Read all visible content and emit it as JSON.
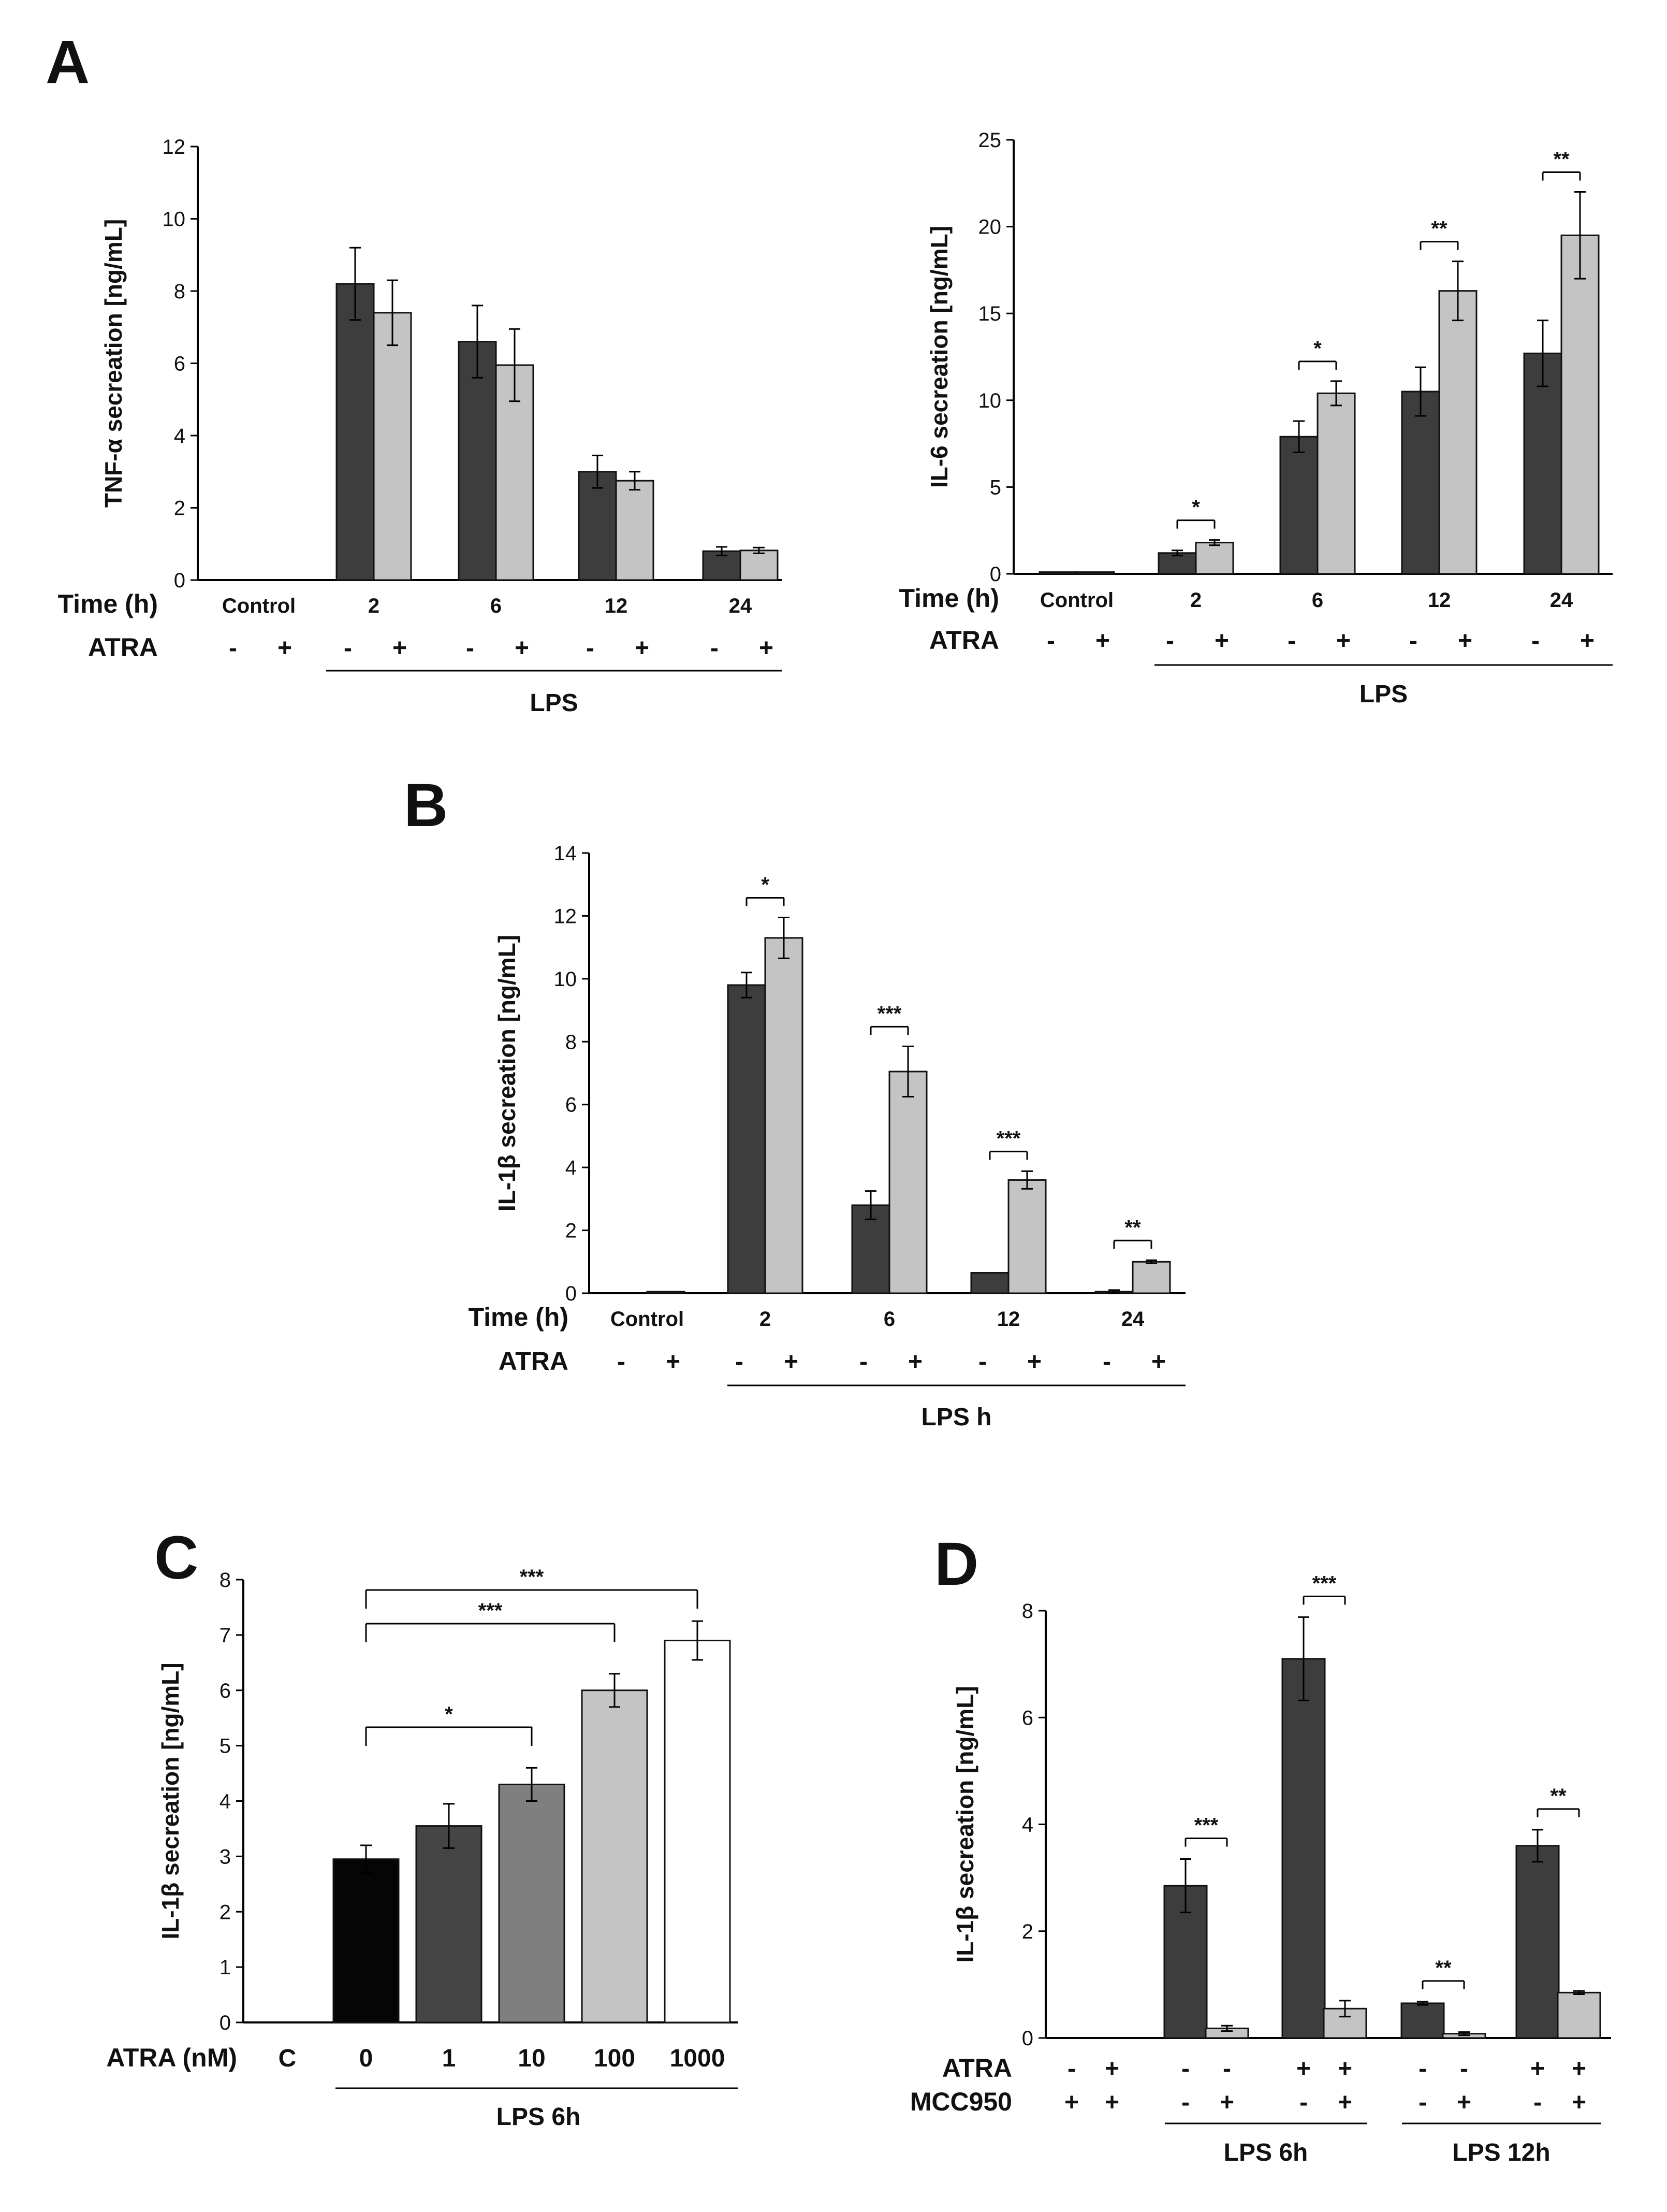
{
  "colors": {
    "dark": "#3d3d3d",
    "light": "#c4c4c4",
    "black": "#050505",
    "mid_dark": "#454545",
    "mid": "#7f7f7f",
    "white": "#ffffff",
    "axis": "#000000"
  },
  "chart_data": [
    {
      "id": "A1",
      "panel_letter": "A",
      "type": "bar",
      "title": "",
      "ylabel": "TNF-α secreation [ng/mL]",
      "xlabel": "",
      "ylim": [
        0,
        12
      ],
      "yticks": [
        "0",
        "2",
        "4",
        "6",
        "8",
        "10",
        "12"
      ],
      "row1_label": "Time (h)",
      "row2_label": "ATRA",
      "categories": [
        "Control",
        "2",
        "6",
        "12",
        "24"
      ],
      "atra_signs": [
        "-",
        "+",
        "-",
        "+",
        "-",
        "+",
        "-",
        "+",
        "-",
        "+"
      ],
      "group_label": "LPS",
      "series": [
        {
          "name": "ATRA -",
          "values": [
            0,
            8.2,
            6.6,
            3.0,
            0.8
          ],
          "errors": [
            0,
            1.0,
            1.0,
            0.45,
            0.12
          ]
        },
        {
          "name": "ATRA +",
          "values": [
            0,
            7.4,
            5.95,
            2.75,
            0.82
          ],
          "errors": [
            0,
            0.9,
            1.0,
            0.25,
            0.08
          ]
        }
      ],
      "significance": []
    },
    {
      "id": "A2",
      "panel_letter": "",
      "type": "bar",
      "title": "",
      "ylabel": "IL-6 secreation [ng/mL]",
      "xlabel": "",
      "ylim": [
        0,
        25
      ],
      "yticks": [
        "0",
        "5",
        "10",
        "15",
        "20",
        "25"
      ],
      "row1_label": "Time (h)",
      "row2_label": "ATRA",
      "categories": [
        "Control",
        "2",
        "6",
        "12",
        "24"
      ],
      "atra_signs": [
        "-",
        "+",
        "-",
        "+",
        "-",
        "+",
        "-",
        "+",
        "-",
        "+"
      ],
      "group_label": "LPS",
      "series": [
        {
          "name": "ATRA -",
          "values": [
            0.1,
            1.2,
            7.9,
            10.5,
            12.7
          ],
          "errors": [
            0,
            0.15,
            0.9,
            1.4,
            1.9
          ]
        },
        {
          "name": "ATRA +",
          "values": [
            0.1,
            1.8,
            10.4,
            16.3,
            19.5
          ],
          "errors": [
            0,
            0.15,
            0.7,
            1.7,
            2.5
          ]
        }
      ],
      "significance": [
        {
          "group": 1,
          "label": "*"
        },
        {
          "group": 2,
          "label": "*"
        },
        {
          "group": 3,
          "label": "**"
        },
        {
          "group": 4,
          "label": "**"
        }
      ]
    },
    {
      "id": "B",
      "panel_letter": "B",
      "type": "bar",
      "title": "",
      "ylabel": "IL-1β secreation [ng/mL]",
      "xlabel": "",
      "ylim": [
        0,
        14
      ],
      "yticks": [
        "0",
        "2",
        "4",
        "6",
        "8",
        "10",
        "12",
        "14"
      ],
      "row1_label": "Time (h)",
      "row2_label": "ATRA",
      "categories": [
        "Control",
        "2",
        "6",
        "12",
        "24"
      ],
      "atra_signs": [
        "-",
        "+",
        "-",
        "+",
        "-",
        "+",
        "-",
        "+",
        "-",
        "+"
      ],
      "group_label": "LPS h",
      "series": [
        {
          "name": "ATRA -",
          "values": [
            0,
            9.8,
            2.8,
            0.65,
            0.05
          ],
          "errors": [
            0,
            0.4,
            0.45,
            0,
            0.05
          ]
        },
        {
          "name": "ATRA +",
          "values": [
            0.05,
            11.3,
            7.05,
            3.6,
            1.0
          ],
          "errors": [
            0,
            0.65,
            0.8,
            0.28,
            0.05
          ]
        }
      ],
      "significance": [
        {
          "group": 1,
          "label": "*"
        },
        {
          "group": 2,
          "label": "***"
        },
        {
          "group": 3,
          "label": "***"
        },
        {
          "group": 4,
          "label": "**"
        }
      ]
    },
    {
      "id": "C",
      "panel_letter": "C",
      "type": "bar",
      "title": "",
      "ylabel": "IL-1β secreation [ng/mL]",
      "xlabel": "",
      "ylim": [
        0,
        8
      ],
      "yticks": [
        "0",
        "1",
        "2",
        "3",
        "4",
        "5",
        "6",
        "7",
        "8"
      ],
      "row1_label": "ATRA (nM)",
      "categories": [
        "C",
        "0",
        "1",
        "10",
        "100",
        "1000"
      ],
      "values": [
        0,
        2.95,
        3.55,
        4.3,
        6.0,
        6.9
      ],
      "errors": [
        0,
        0.25,
        0.4,
        0.3,
        0.3,
        0.35
      ],
      "group_label": "LPS 6h",
      "significance": [
        {
          "from": 1,
          "to": 3,
          "label": "*"
        },
        {
          "from": 1,
          "to": 4,
          "label": "***"
        },
        {
          "from": 1,
          "to": 5,
          "label": "***"
        }
      ]
    },
    {
      "id": "D",
      "panel_letter": "D",
      "type": "bar",
      "title": "",
      "ylabel": "IL-1β secreation [ng/mL]",
      "xlabel": "",
      "ylim": [
        0,
        8
      ],
      "yticks": [
        "0",
        "2",
        "4",
        "6",
        "8"
      ],
      "row1_label": "ATRA",
      "row2_label": "MCC950",
      "atra_signs": [
        "-",
        "+",
        "-",
        "-",
        "+",
        "+",
        "-",
        "-",
        "+",
        "+"
      ],
      "mcc950_signs": [
        "+",
        "+",
        "-",
        "+",
        "-",
        "+",
        "-",
        "+",
        "-",
        "+"
      ],
      "values": [
        0,
        0,
        2.85,
        0.18,
        7.1,
        0.55,
        0.65,
        0.08,
        3.6,
        0.85
      ],
      "errors": [
        0,
        0,
        0.5,
        0.05,
        0.78,
        0.15,
        0.03,
        0.03,
        0.3,
        0.03
      ],
      "group_labels": [
        "LPS 6h",
        "LPS 12h"
      ],
      "significance": [
        {
          "from": 2,
          "to": 3,
          "label": "***"
        },
        {
          "from": 4,
          "to": 5,
          "label": "***"
        },
        {
          "from": 6,
          "to": 7,
          "label": "**"
        },
        {
          "from": 8,
          "to": 9,
          "label": "**"
        }
      ]
    }
  ]
}
